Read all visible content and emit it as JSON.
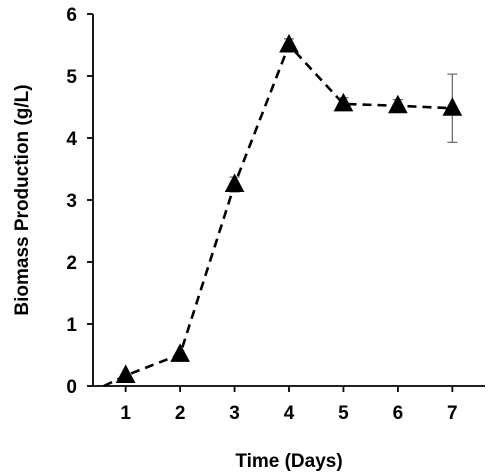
{
  "chart_data": {
    "type": "line",
    "title": "",
    "xlabel": "Time (Days)",
    "ylabel": "Biomass Production (g/L)",
    "x": [
      0.6,
      1,
      2,
      3,
      4,
      5,
      6,
      7
    ],
    "x_ticks": [
      1,
      2,
      3,
      4,
      5,
      6,
      7
    ],
    "y_ticks": [
      0,
      1,
      2,
      3,
      4,
      5,
      6
    ],
    "xlim": [
      0.4,
      7.6
    ],
    "ylim": [
      0,
      6
    ],
    "grid": false,
    "legend": "none",
    "series": [
      {
        "line_style": "dashed",
        "marker": "triangle",
        "color": "#000000",
        "x": [
          0.6,
          1,
          2,
          3,
          4,
          5,
          6,
          7
        ],
        "values": [
          0.0,
          0.17,
          0.51,
          3.25,
          5.5,
          4.55,
          4.52,
          4.48
        ],
        "error": [
          0,
          0,
          0,
          0.12,
          0.1,
          0.1,
          0.1,
          0.55
        ],
        "markers_at": [
          1,
          2,
          3,
          4,
          5,
          6,
          7
        ]
      }
    ]
  }
}
